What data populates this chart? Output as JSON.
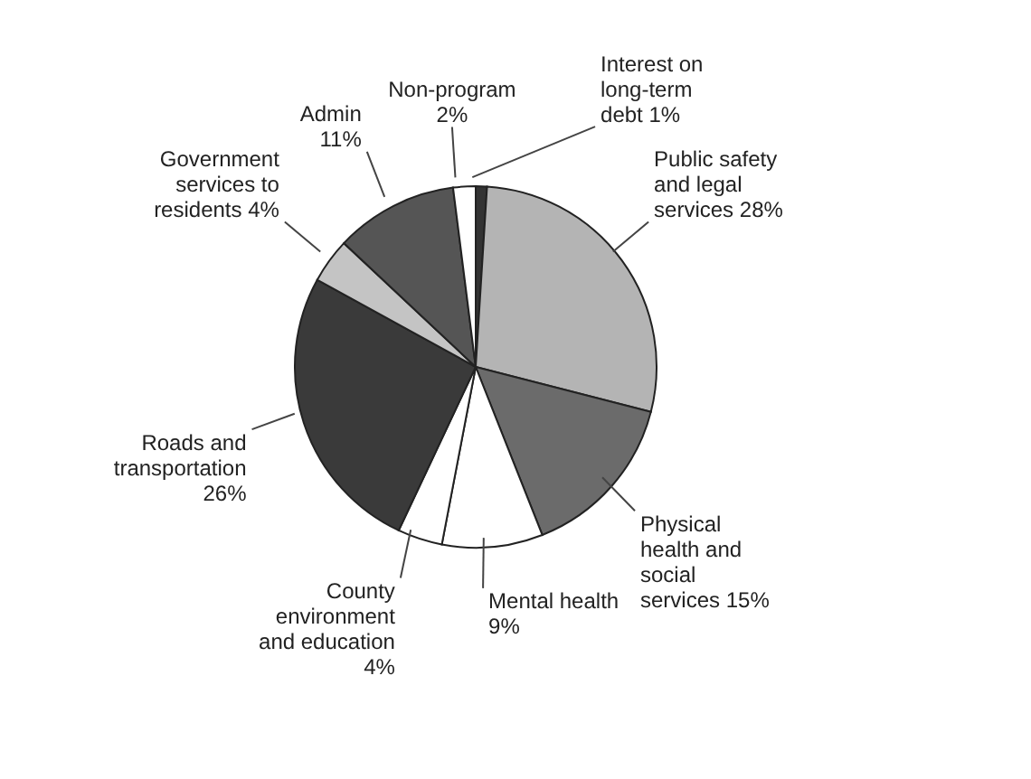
{
  "chart_data": {
    "type": "pie",
    "categories": [
      "Interest on long-term debt",
      "Public safety and legal services",
      "Physical health and social services",
      "Mental health",
      "County environment and education",
      "Roads and transportation",
      "Government services to residents",
      "Admin",
      "Non-program"
    ],
    "values": [
      1,
      28,
      15,
      9,
      4,
      26,
      4,
      11,
      2
    ],
    "value_labels": [
      "1%",
      "28%",
      "15%",
      "9%",
      "4%",
      "26%",
      "4%",
      "11%",
      "2%"
    ],
    "colors": [
      "#333333",
      "#b4b4b4",
      "#6b6b6b",
      "#ffffff",
      "#ffffff",
      "#3a3a3a",
      "#c4c4c4",
      "#555555",
      "#ffffff"
    ]
  }
}
